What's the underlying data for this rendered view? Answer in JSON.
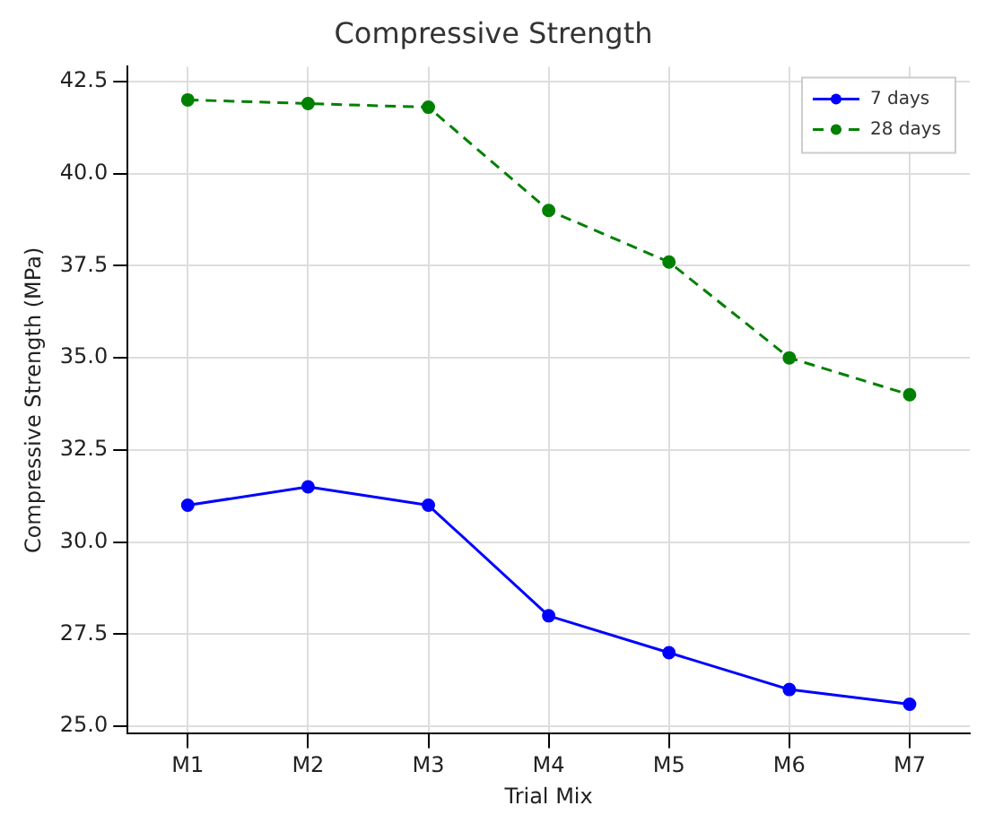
{
  "chart_data": {
    "type": "line",
    "title": "Compressive Strength",
    "xlabel": "Trial Mix",
    "ylabel": "Compressive Strength (MPa)",
    "categories": [
      "M1",
      "M2",
      "M3",
      "M4",
      "M5",
      "M6",
      "M7"
    ],
    "series": [
      {
        "name": "7 days",
        "color": "#0000ff",
        "values": [
          31,
          31.5,
          31,
          28,
          27,
          26,
          25.6
        ],
        "line_style": "solid"
      },
      {
        "name": "28 days",
        "color": "#008000",
        "values": [
          42,
          41.9,
          41.8,
          39,
          37.6,
          35,
          34
        ],
        "line_style": "dashed"
      }
    ],
    "ylim": [
      24.8,
      42.9
    ],
    "yticks": [
      {
        "value": 25,
        "label": "25.0"
      },
      {
        "value": 27.5,
        "label": "27.5"
      },
      {
        "value": 30,
        "label": "30.0"
      },
      {
        "value": 32.5,
        "label": "32.5"
      },
      {
        "value": 35,
        "label": "35.0"
      },
      {
        "value": 37.5,
        "label": "37.5"
      },
      {
        "value": 40,
        "label": "40.0"
      },
      {
        "value": 42.5,
        "label": "42.5"
      }
    ],
    "grid": true,
    "legend": "top right",
    "marker": "circle"
  }
}
